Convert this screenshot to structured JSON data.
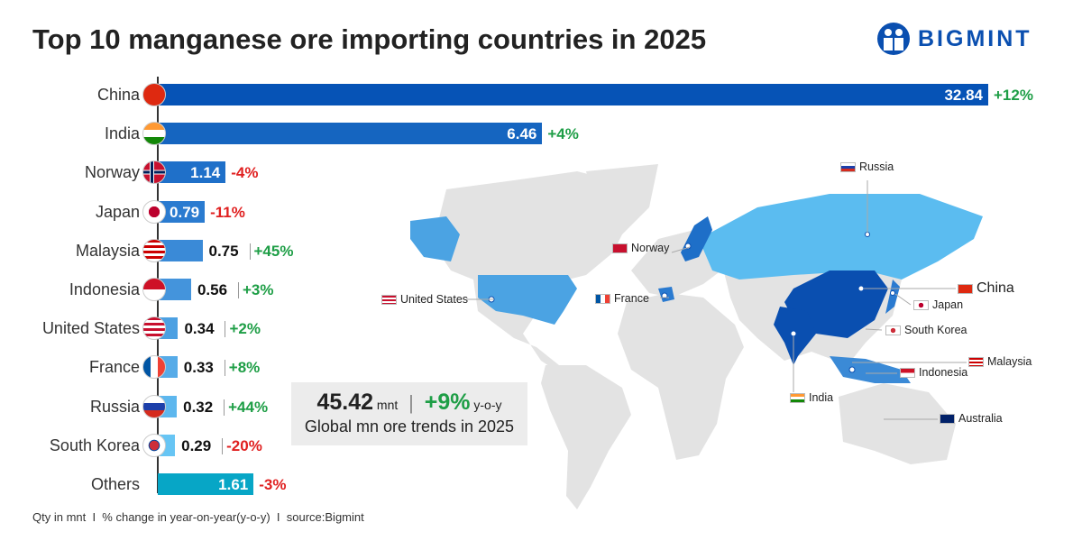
{
  "title": "Top 10 manganese ore importing countries in 2025",
  "logo": "BIGMINT",
  "footer": "Qty in mnt  I  % change in year-on-year(y-o-y)  I  source:Bigmint",
  "summary": {
    "value": "45.42",
    "unit": "mnt",
    "change": "+9%",
    "change_unit": "y-o-y",
    "caption": "Global mn ore trends in 2025"
  },
  "colors": {
    "positive": "#1e9e46",
    "negative": "#e02020",
    "china": "#0a4fb0",
    "highlight": "#4ba3e3",
    "russia": "#5bbcf0",
    "land": "#e3e3e3"
  },
  "chart_data": {
    "type": "bar",
    "orientation": "horizontal",
    "title": "Top 10 manganese ore importing countries in 2025",
    "categories": [
      "China",
      "India",
      "Norway",
      "Japan",
      "Malaysia",
      "Indonesia",
      "United States",
      "France",
      "Russia",
      "South Korea",
      "Others"
    ],
    "values": [
      32.84,
      6.46,
      1.14,
      0.79,
      0.75,
      0.56,
      0.34,
      0.33,
      0.32,
      0.29,
      1.61
    ],
    "value_labels": [
      "32.84",
      "6.46",
      "1.14",
      "0.79",
      "0.75",
      "0.56",
      "0.34",
      "0.33",
      "0.32",
      "0.29",
      "1.61"
    ],
    "yoy_change": [
      "+12%",
      "+4%",
      "-4%",
      "-11%",
      "+45%",
      "+3%",
      "+2%",
      "+8%",
      "+44%",
      "-20%",
      "-3%"
    ],
    "bar_colors": [
      "#0653b6",
      "#1565c0",
      "#1f70c9",
      "#2a7bd0",
      "#3a8ad7",
      "#4494dc",
      "#4ca0e2",
      "#56abe8",
      "#5db7ee",
      "#67c5f4",
      "#07a6c6"
    ],
    "units": "mnt"
  },
  "map_labels": [
    "Russia",
    "Norway",
    "United States",
    "France",
    "China",
    "Japan",
    "South Korea",
    "Malaysia",
    "Indonesia",
    "India",
    "Australia"
  ]
}
